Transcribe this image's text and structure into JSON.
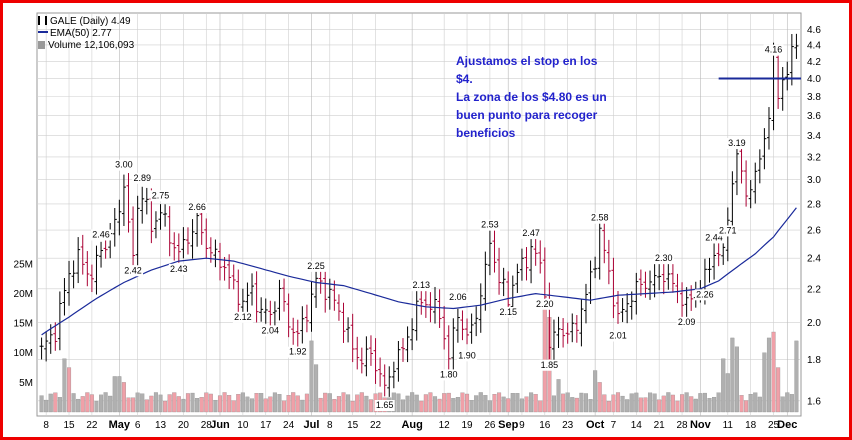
{
  "legend": {
    "symbol_line": "GALE (Daily) 4.49",
    "ema_line": "EMA(50) 2.77",
    "volume_line": "Volume 12,106,093"
  },
  "note": {
    "lines": [
      "Ajustamos el stop en los",
      "$4.",
      "La zona de los $4.80 es un",
      "buen punto para recoger",
      "beneficios"
    ]
  },
  "colors": {
    "frame": "#ee0000",
    "up_bar": "#000000",
    "down_bar": "#aa0033",
    "ema": "#1a2a9a",
    "stop_line": "#1a2a9a",
    "vol_up": "#b0b0b0",
    "vol_down": "#f0a0a8",
    "note_text": "#2222cc",
    "grid": "#cfcfcf"
  },
  "chart_data": {
    "type": "line",
    "title": "GALE (Daily) 4.49",
    "price_axis": {
      "scale": "log",
      "ylim": [
        1.55,
        4.75
      ],
      "ticks": [
        "1.6",
        "1.8",
        "2.0",
        "2.2",
        "2.4",
        "2.6",
        "2.8",
        "3.0",
        "3.2",
        "3.4",
        "3.6",
        "3.8",
        "4.0",
        "4.2",
        "4.4",
        "4.6"
      ]
    },
    "volume_axis": {
      "ylim": [
        0,
        27000000
      ],
      "ticks": [
        {
          "value": 5000000,
          "label": "5M"
        },
        {
          "value": 10000000,
          "label": "10M"
        },
        {
          "value": 15000000,
          "label": "15M"
        },
        {
          "value": 20000000,
          "label": "20M"
        },
        {
          "value": 25000000,
          "label": "25M"
        }
      ]
    },
    "x_axis": {
      "ticks": [
        {
          "label": "8",
          "day": 1,
          "bold": false
        },
        {
          "label": "15",
          "day": 6,
          "bold": false
        },
        {
          "label": "22",
          "day": 11,
          "bold": false
        },
        {
          "label": "May",
          "day": 17,
          "bold": true
        },
        {
          "label": "6",
          "day": 21,
          "bold": false
        },
        {
          "label": "13",
          "day": 26,
          "bold": false
        },
        {
          "label": "20",
          "day": 31,
          "bold": false
        },
        {
          "label": "28",
          "day": 36,
          "bold": false
        },
        {
          "label": "Jun",
          "day": 39,
          "bold": true
        },
        {
          "label": "10",
          "day": 44,
          "bold": false
        },
        {
          "label": "17",
          "day": 49,
          "bold": false
        },
        {
          "label": "24",
          "day": 54,
          "bold": false
        },
        {
          "label": "Jul",
          "day": 59,
          "bold": true
        },
        {
          "label": "8",
          "day": 63,
          "bold": false
        },
        {
          "label": "15",
          "day": 68,
          "bold": false
        },
        {
          "label": "22",
          "day": 73,
          "bold": false
        },
        {
          "label": "Aug",
          "day": 81,
          "bold": true
        },
        {
          "label": "12",
          "day": 88,
          "bold": false
        },
        {
          "label": "19",
          "day": 93,
          "bold": false
        },
        {
          "label": "26",
          "day": 98,
          "bold": false
        },
        {
          "label": "Sep",
          "day": 102,
          "bold": true
        },
        {
          "label": "9",
          "day": 105,
          "bold": false
        },
        {
          "label": "16",
          "day": 110,
          "bold": false
        },
        {
          "label": "23",
          "day": 115,
          "bold": false
        },
        {
          "label": "Oct",
          "day": 121,
          "bold": true
        },
        {
          "label": "7",
          "day": 125,
          "bold": false
        },
        {
          "label": "14",
          "day": 130,
          "bold": false
        },
        {
          "label": "21",
          "day": 135,
          "bold": false
        },
        {
          "label": "28",
          "day": 140,
          "bold": false
        },
        {
          "label": "Nov",
          "day": 144,
          "bold": true
        },
        {
          "label": "11",
          "day": 150,
          "bold": false
        },
        {
          "label": "18",
          "day": 155,
          "bold": false
        },
        {
          "label": "25",
          "day": 160,
          "bold": false
        },
        {
          "label": "Dec",
          "day": 163,
          "bold": true
        }
      ],
      "range": [
        -1,
        166
      ]
    },
    "price_anchors": [
      [
        0,
        1.85
      ],
      [
        3,
        1.95
      ],
      [
        6,
        2.3
      ],
      [
        8,
        2.4
      ],
      [
        11,
        2.28
      ],
      [
        13,
        2.46
      ],
      [
        15,
        2.55
      ],
      [
        17,
        2.75
      ],
      [
        18,
        3.0
      ],
      [
        19,
        2.6
      ],
      [
        20,
        2.42
      ],
      [
        21,
        2.78
      ],
      [
        22,
        2.89
      ],
      [
        24,
        2.62
      ],
      [
        26,
        2.75
      ],
      [
        28,
        2.55
      ],
      [
        30,
        2.43
      ],
      [
        32,
        2.55
      ],
      [
        34,
        2.66
      ],
      [
        36,
        2.5
      ],
      [
        38,
        2.4
      ],
      [
        40,
        2.35
      ],
      [
        42,
        2.2
      ],
      [
        44,
        2.12
      ],
      [
        46,
        2.18
      ],
      [
        48,
        2.06
      ],
      [
        50,
        2.04
      ],
      [
        52,
        2.18
      ],
      [
        54,
        2.0
      ],
      [
        56,
        1.92
      ],
      [
        58,
        2.06
      ],
      [
        60,
        2.25
      ],
      [
        62,
        2.2
      ],
      [
        64,
        2.12
      ],
      [
        66,
        2.0
      ],
      [
        68,
        1.85
      ],
      [
        70,
        1.8
      ],
      [
        72,
        1.83
      ],
      [
        74,
        1.72
      ],
      [
        75,
        1.65
      ],
      [
        77,
        1.78
      ],
      [
        79,
        1.85
      ],
      [
        81,
        2.0
      ],
      [
        83,
        2.13
      ],
      [
        85,
        2.1
      ],
      [
        87,
        2.05
      ],
      [
        89,
        1.8
      ],
      [
        91,
        2.06
      ],
      [
        93,
        1.9
      ],
      [
        95,
        2.05
      ],
      [
        97,
        2.3
      ],
      [
        98,
        2.53
      ],
      [
        100,
        2.25
      ],
      [
        102,
        2.15
      ],
      [
        104,
        2.3
      ],
      [
        106,
        2.4
      ],
      [
        107,
        2.47
      ],
      [
        109,
        2.35
      ],
      [
        110,
        2.2
      ],
      [
        111,
        1.85
      ],
      [
        113,
        1.98
      ],
      [
        115,
        1.92
      ],
      [
        117,
        2.0
      ],
      [
        119,
        2.15
      ],
      [
        121,
        2.4
      ],
      [
        122,
        2.58
      ],
      [
        124,
        2.3
      ],
      [
        126,
        2.01
      ],
      [
        128,
        2.12
      ],
      [
        130,
        2.2
      ],
      [
        132,
        2.24
      ],
      [
        134,
        2.25
      ],
      [
        136,
        2.3
      ],
      [
        138,
        2.22
      ],
      [
        140,
        2.15
      ],
      [
        141,
        2.09
      ],
      [
        143,
        2.2
      ],
      [
        145,
        2.26
      ],
      [
        147,
        2.44
      ],
      [
        149,
        2.42
      ],
      [
        150,
        2.71
      ],
      [
        151,
        3.0
      ],
      [
        152,
        3.19
      ],
      [
        154,
        2.9
      ],
      [
        156,
        3.0
      ],
      [
        158,
        3.4
      ],
      [
        159,
        3.6
      ],
      [
        160,
        4.16
      ],
      [
        161,
        3.85
      ],
      [
        162,
        4.0
      ],
      [
        163,
        4.05
      ],
      [
        165,
        4.5
      ]
    ],
    "ema_anchors": [
      [
        0,
        1.93
      ],
      [
        6,
        2.03
      ],
      [
        12,
        2.14
      ],
      [
        18,
        2.24
      ],
      [
        24,
        2.32
      ],
      [
        30,
        2.38
      ],
      [
        36,
        2.4
      ],
      [
        42,
        2.38
      ],
      [
        48,
        2.33
      ],
      [
        54,
        2.28
      ],
      [
        60,
        2.24
      ],
      [
        66,
        2.22
      ],
      [
        72,
        2.17
      ],
      [
        78,
        2.12
      ],
      [
        84,
        2.09
      ],
      [
        90,
        2.08
      ],
      [
        96,
        2.1
      ],
      [
        102,
        2.14
      ],
      [
        108,
        2.17
      ],
      [
        114,
        2.15
      ],
      [
        120,
        2.13
      ],
      [
        126,
        2.16
      ],
      [
        132,
        2.17
      ],
      [
        138,
        2.18
      ],
      [
        144,
        2.2
      ],
      [
        148,
        2.25
      ],
      [
        152,
        2.34
      ],
      [
        156,
        2.43
      ],
      [
        160,
        2.55
      ],
      [
        163,
        2.68
      ],
      [
        165,
        2.77
      ]
    ],
    "volume_days": [
      {
        "day": 5,
        "value": 9000000,
        "down": false
      },
      {
        "day": 6,
        "value": 7500000,
        "down": true
      },
      {
        "day": 16,
        "value": 6000000,
        "down": false
      },
      {
        "day": 17,
        "value": 6000000,
        "down": false
      },
      {
        "day": 18,
        "value": 5000000,
        "down": true
      },
      {
        "day": 59,
        "value": 12000000,
        "down": false
      },
      {
        "day": 60,
        "value": 8000000,
        "down": false
      },
      {
        "day": 110,
        "value": 17500000,
        "down": true
      },
      {
        "day": 111,
        "value": 16000000,
        "down": true
      },
      {
        "day": 113,
        "value": 5500000,
        "down": false
      },
      {
        "day": 121,
        "value": 7000000,
        "down": false
      },
      {
        "day": 122,
        "value": 5000000,
        "down": true
      },
      {
        "day": 149,
        "value": 9000000,
        "down": false
      },
      {
        "day": 150,
        "value": 6500000,
        "down": false
      },
      {
        "day": 151,
        "value": 12500000,
        "down": false
      },
      {
        "day": 152,
        "value": 11000000,
        "down": false
      },
      {
        "day": 158,
        "value": 10000000,
        "down": false
      },
      {
        "day": 159,
        "value": 12500000,
        "down": false
      },
      {
        "day": 160,
        "value": 13500000,
        "down": true
      },
      {
        "day": 161,
        "value": 7500000,
        "down": true
      },
      {
        "day": 165,
        "value": 12000000,
        "down": false
      }
    ],
    "volume_base": 3000000,
    "stop_line": {
      "value": 4.0,
      "from_day": 148,
      "to_day": 166
    },
    "annotations": [
      {
        "day": 18,
        "value": 3.0,
        "text": "3.00",
        "pos": "above"
      },
      {
        "day": 22,
        "value": 2.89,
        "text": "2.89",
        "pos": "above"
      },
      {
        "day": 26,
        "value": 2.75,
        "text": "2.75",
        "pos": "above"
      },
      {
        "day": 34,
        "value": 2.66,
        "text": "2.66",
        "pos": "above"
      },
      {
        "day": 13,
        "value": 2.46,
        "text": "2.46",
        "pos": "above"
      },
      {
        "day": 20,
        "value": 2.42,
        "text": "2.42",
        "pos": "below"
      },
      {
        "day": 30,
        "value": 2.43,
        "text": "2.43",
        "pos": "below"
      },
      {
        "day": 44,
        "value": 2.12,
        "text": "2.12",
        "pos": "below"
      },
      {
        "day": 50,
        "value": 2.04,
        "text": "2.04",
        "pos": "below"
      },
      {
        "day": 56,
        "value": 1.92,
        "text": "1.92",
        "pos": "below"
      },
      {
        "day": 60,
        "value": 2.25,
        "text": "2.25",
        "pos": "above"
      },
      {
        "day": 75,
        "value": 1.65,
        "text": "1.65",
        "pos": "below"
      },
      {
        "day": 83,
        "value": 2.13,
        "text": "2.13",
        "pos": "above"
      },
      {
        "day": 89,
        "value": 1.8,
        "text": "1.80",
        "pos": "below"
      },
      {
        "day": 91,
        "value": 2.06,
        "text": "2.06",
        "pos": "above"
      },
      {
        "day": 93,
        "value": 1.9,
        "text": "1.90",
        "pos": "below"
      },
      {
        "day": 98,
        "value": 2.53,
        "text": "2.53",
        "pos": "above"
      },
      {
        "day": 102,
        "value": 2.15,
        "text": "2.15",
        "pos": "below"
      },
      {
        "day": 107,
        "value": 2.47,
        "text": "2.47",
        "pos": "above"
      },
      {
        "day": 110,
        "value": 2.2,
        "text": "2.20",
        "pos": "below"
      },
      {
        "day": 111,
        "value": 1.85,
        "text": "1.85",
        "pos": "below"
      },
      {
        "day": 122,
        "value": 2.58,
        "text": "2.58",
        "pos": "above"
      },
      {
        "day": 126,
        "value": 2.01,
        "text": "2.01",
        "pos": "below"
      },
      {
        "day": 136,
        "value": 2.3,
        "text": "2.30",
        "pos": "above"
      },
      {
        "day": 141,
        "value": 2.09,
        "text": "2.09",
        "pos": "below"
      },
      {
        "day": 145,
        "value": 2.26,
        "text": "2.26",
        "pos": "below"
      },
      {
        "day": 147,
        "value": 2.44,
        "text": "2.44",
        "pos": "above"
      },
      {
        "day": 150,
        "value": 2.71,
        "text": "2.71",
        "pos": "below"
      },
      {
        "day": 152,
        "value": 3.19,
        "text": "3.19",
        "pos": "above"
      },
      {
        "day": 160,
        "value": 4.16,
        "text": "4.16",
        "pos": "above"
      }
    ]
  }
}
